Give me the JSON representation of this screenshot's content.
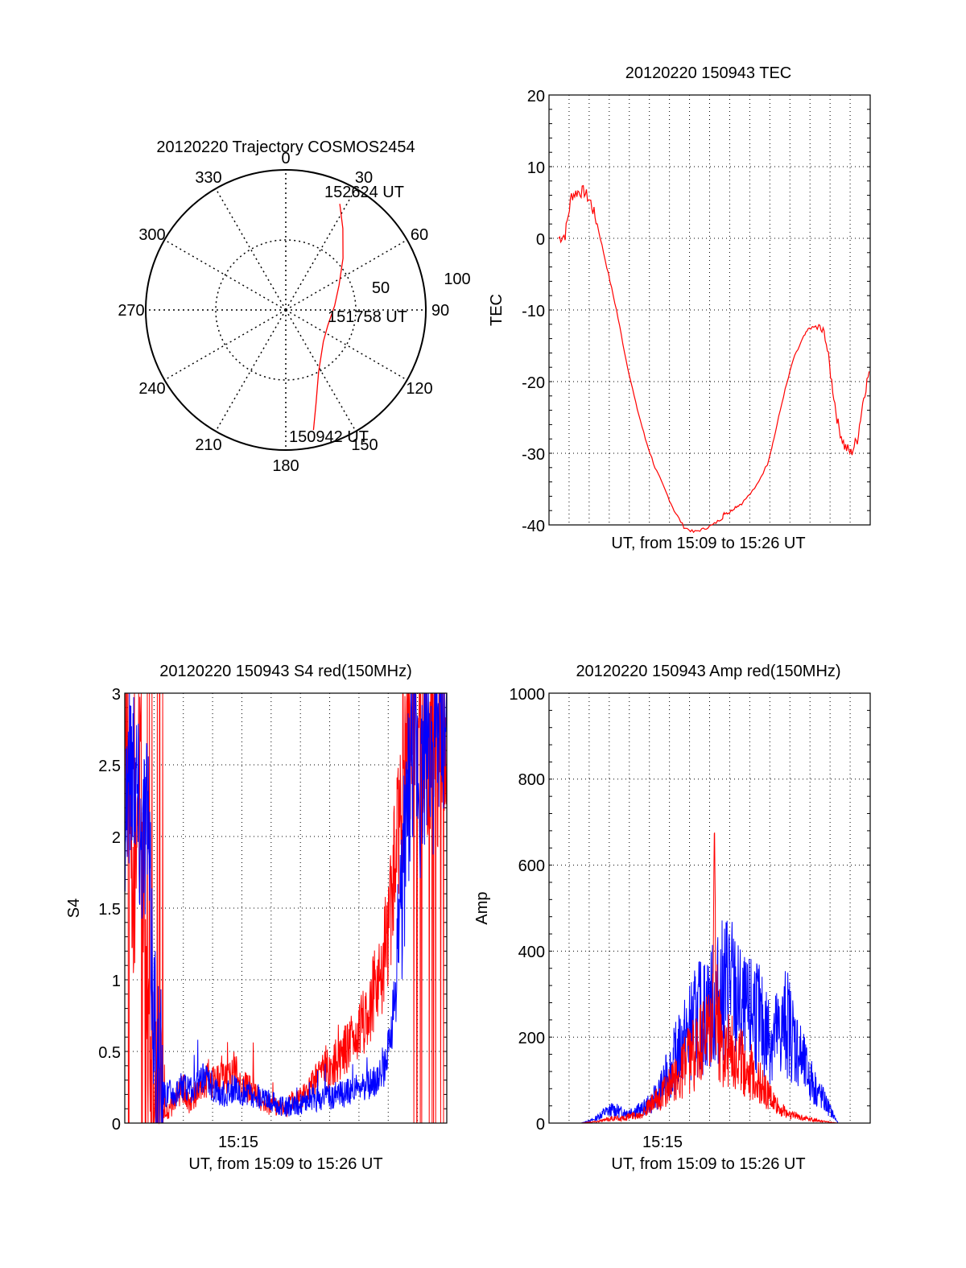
{
  "colors": {
    "red": "#ff0000",
    "blue": "#0000ff",
    "axis": "#000000",
    "grid": "#000000"
  },
  "chart_data": [
    {
      "id": "trajectory",
      "type": "polar",
      "title": "20120220 Trajectory COSMOS2454",
      "azimuth_labels": [
        "0",
        "30",
        "60",
        "90",
        "120",
        "150",
        "180",
        "210",
        "240",
        "270",
        "300",
        "330"
      ],
      "radial_labels": [
        "50",
        "100"
      ],
      "grid": true,
      "points": [
        {
          "az": 167,
          "zd": 88
        },
        {
          "az": 162,
          "zd": 70
        },
        {
          "az": 152,
          "zd": 50
        },
        {
          "az": 130,
          "zd": 35
        },
        {
          "az": 110,
          "zd": 32
        },
        {
          "az": 85,
          "zd": 35
        },
        {
          "az": 65,
          "zd": 42
        },
        {
          "az": 48,
          "zd": 55
        },
        {
          "az": 35,
          "zd": 71
        },
        {
          "az": 27,
          "zd": 85
        }
      ],
      "annotations": [
        {
          "text": "152624 UT",
          "az": 26,
          "zd": 85
        },
        {
          "text": "151758 UT",
          "az": 98,
          "zd": 40
        },
        {
          "text": "150942 UT",
          "az": 167,
          "zd": 88
        }
      ]
    },
    {
      "id": "tec",
      "type": "line",
      "title": "20120220 150943 TEC",
      "xlabel": "UT, from 15:09 to 15:26 UT",
      "ylabel": "TEC",
      "xlim": [
        0,
        1000
      ],
      "ylim": [
        -40,
        20
      ],
      "yticks": [
        "20",
        "10",
        "0",
        "-10",
        "-20",
        "-30",
        "-40"
      ],
      "grid": true,
      "series": [
        {
          "color": "red",
          "x": [
            30,
            50,
            70,
            90,
            110,
            130,
            150,
            180,
            210,
            240,
            270,
            300,
            330,
            360,
            390,
            420,
            450,
            480,
            510,
            540,
            545,
            560,
            580,
            600,
            640,
            680,
            700,
            730,
            760,
            790,
            810,
            840,
            860,
            880,
            900,
            920,
            940,
            960,
            980,
            1000
          ],
          "y": [
            0,
            0.5,
            6,
            6.5,
            6.5,
            5,
            2,
            -4,
            -10,
            -17,
            -23,
            -28,
            -32,
            -35,
            -38,
            -40.3,
            -41,
            -40.6,
            -40,
            -39,
            -38.3,
            -38.3,
            -37.5,
            -37,
            -35,
            -31.5,
            -28,
            -22,
            -17,
            -14,
            -12.5,
            -12.5,
            -13.5,
            -20,
            -26,
            -29,
            -30,
            -28,
            -22,
            -18
          ]
        }
      ]
    },
    {
      "id": "s4",
      "type": "line",
      "title": "20120220 150943 S4 red(150MHz)",
      "xlabel": "UT, from 15:09 to 15:26 UT",
      "ylabel": "S4",
      "xtick_labels": [
        "15:15"
      ],
      "ylim": [
        0,
        3
      ],
      "yticks": [
        "3",
        "2.5",
        "2",
        "1.5",
        "1",
        "0.5",
        "0"
      ],
      "grid": true,
      "series": [
        {
          "color": "red",
          "x": [
            0,
            3,
            5,
            7,
            8,
            9,
            10,
            11,
            12,
            14,
            16,
            18,
            20,
            22,
            24,
            26,
            28,
            30,
            32,
            34,
            36,
            38,
            40,
            42,
            44,
            46,
            48,
            50,
            52,
            54,
            56,
            58,
            60,
            62,
            64,
            66,
            68,
            70,
            72,
            74,
            76,
            78,
            80,
            82,
            84,
            86,
            88,
            90,
            92,
            94,
            96,
            98,
            100
          ],
          "y": [
            2.8,
            1.6,
            2.5,
            0.9,
            0.7,
            0.35,
            0.2,
            0.1,
            0.06,
            0.1,
            0.17,
            0.25,
            0.14,
            0.2,
            0.22,
            0.32,
            0.27,
            0.36,
            0.3,
            0.38,
            0.28,
            0.25,
            0.23,
            0.16,
            0.12,
            0.15,
            0.1,
            0.11,
            0.15,
            0.18,
            0.2,
            0.25,
            0.33,
            0.4,
            0.38,
            0.45,
            0.5,
            0.55,
            0.6,
            0.7,
            0.8,
            0.95,
            1.1,
            1.4,
            1.8,
            2.3,
            2.7,
            2.8,
            2.9,
            2.6,
            2.8,
            2.5,
            2.7
          ]
        },
        {
          "color": "blue",
          "x": [
            0,
            3,
            5,
            7,
            8,
            9,
            10,
            11,
            12,
            14,
            16,
            18,
            20,
            22,
            24,
            26,
            28,
            30,
            32,
            34,
            36,
            38,
            40,
            42,
            44,
            46,
            48,
            50,
            52,
            54,
            56,
            58,
            60,
            62,
            64,
            66,
            68,
            70,
            72,
            74,
            76,
            78,
            80,
            82,
            84,
            86,
            88,
            90,
            92,
            94,
            96,
            98,
            100
          ],
          "y": [
            2.3,
            2.6,
            2.0,
            2.2,
            1.4,
            0.8,
            0.4,
            0.25,
            0.2,
            0.22,
            0.2,
            0.26,
            0.22,
            0.24,
            0.3,
            0.28,
            0.25,
            0.2,
            0.22,
            0.24,
            0.2,
            0.22,
            0.2,
            0.17,
            0.15,
            0.15,
            0.12,
            0.11,
            0.12,
            0.13,
            0.15,
            0.17,
            0.16,
            0.18,
            0.18,
            0.2,
            0.2,
            0.22,
            0.25,
            0.24,
            0.26,
            0.3,
            0.35,
            0.5,
            0.9,
            1.6,
            2.2,
            2.6,
            2.3,
            2.7,
            2.5,
            2.8,
            2.6
          ]
        }
      ]
    },
    {
      "id": "amp",
      "type": "line",
      "title": "20120220 150943 Amp red(150MHz)",
      "xlabel": "UT, from 15:09 to 15:26 UT",
      "ylabel": "Amp",
      "xtick_labels": [
        "15:15"
      ],
      "ylim": [
        0,
        1000
      ],
      "yticks": [
        "1000",
        "800",
        "600",
        "400",
        "200",
        "0"
      ],
      "grid": true,
      "series": [
        {
          "color": "red",
          "x": [
            0,
            10,
            15,
            18,
            20,
            22,
            25,
            28,
            30,
            33,
            36,
            40,
            42,
            45,
            48,
            50,
            51,
            51.5,
            52,
            53,
            55,
            58,
            60,
            63,
            66,
            70,
            72,
            75,
            80,
            85,
            90,
            100
          ],
          "y": [
            0,
            0,
            5,
            10,
            15,
            12,
            20,
            25,
            40,
            60,
            90,
            130,
            170,
            200,
            230,
            250,
            300,
            720,
            320,
            260,
            220,
            200,
            180,
            150,
            110,
            60,
            40,
            25,
            15,
            5,
            0,
            0
          ]
        },
        {
          "color": "blue",
          "x": [
            0,
            10,
            14,
            17,
            20,
            23,
            26,
            29,
            32,
            35,
            38,
            40,
            43,
            46,
            49,
            52,
            54,
            56,
            58,
            60,
            62,
            64,
            66,
            68,
            70,
            72,
            74,
            76,
            78,
            80,
            83,
            86,
            88,
            90,
            100
          ],
          "y": [
            0,
            0,
            10,
            30,
            40,
            30,
            35,
            40,
            60,
            100,
            160,
            200,
            250,
            300,
            320,
            350,
            380,
            420,
            360,
            320,
            300,
            340,
            280,
            260,
            250,
            260,
            300,
            250,
            200,
            150,
            100,
            60,
            30,
            0,
            0
          ]
        }
      ]
    }
  ]
}
